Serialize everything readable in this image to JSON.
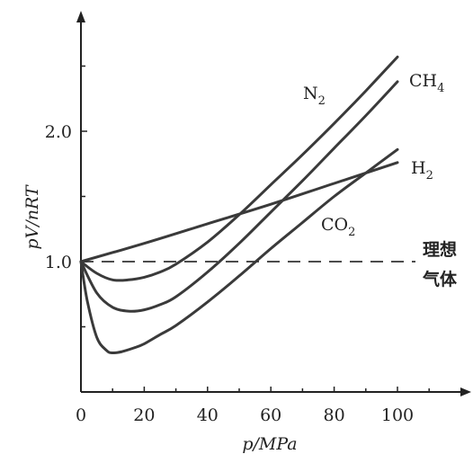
{
  "chart_data": {
    "type": "line",
    "xlabel": "p/MPa",
    "ylabel": "pV/nRT",
    "xlim": [
      0,
      125
    ],
    "ylim": [
      0,
      2.9
    ],
    "x_ticks": [
      0,
      20,
      40,
      60,
      80,
      100
    ],
    "y_ticks": [
      1.0,
      2.0
    ],
    "x_tick_labels": [
      "0",
      "20",
      "40",
      "60",
      "80",
      "100"
    ],
    "y_tick_labels": [
      "1.0",
      "2.0"
    ],
    "grid": false,
    "series": [
      {
        "name": "N2",
        "label_main": "N",
        "label_sub": "2",
        "color": "#3a3a3a",
        "x": [
          0,
          5,
          10,
          15,
          20,
          25,
          30,
          40,
          50,
          60,
          70,
          80,
          90,
          100
        ],
        "y": [
          1.0,
          0.91,
          0.86,
          0.86,
          0.88,
          0.92,
          0.98,
          1.15,
          1.36,
          1.59,
          1.82,
          2.06,
          2.31,
          2.57
        ]
      },
      {
        "name": "CH4",
        "label_main": "CH",
        "label_sub": "4",
        "color": "#3a3a3a",
        "x": [
          0,
          5,
          10,
          15,
          20,
          25,
          30,
          40,
          50,
          60,
          70,
          80,
          90,
          100
        ],
        "y": [
          1.0,
          0.76,
          0.65,
          0.62,
          0.63,
          0.67,
          0.73,
          0.92,
          1.14,
          1.38,
          1.62,
          1.87,
          2.12,
          2.38
        ]
      },
      {
        "name": "H2",
        "label_main": "H",
        "label_sub": "2",
        "color": "#3a3a3a",
        "x": [
          0,
          20,
          40,
          60,
          80,
          100
        ],
        "y": [
          1.0,
          1.14,
          1.29,
          1.44,
          1.6,
          1.76
        ]
      },
      {
        "name": "CO2",
        "label_main": "CO",
        "label_sub": "2",
        "color": "#3a3a3a",
        "x": [
          0,
          2,
          5,
          8,
          10,
          13,
          17,
          20,
          25,
          30,
          40,
          50,
          60,
          70,
          80,
          90,
          100
        ],
        "y": [
          1.0,
          0.7,
          0.42,
          0.32,
          0.3,
          0.31,
          0.34,
          0.37,
          0.44,
          0.51,
          0.69,
          0.89,
          1.1,
          1.3,
          1.5,
          1.68,
          1.86
        ]
      }
    ],
    "reference_line": {
      "y": 1.0,
      "style": "dashed",
      "label_line1": "理想",
      "label_line2": "气体"
    }
  }
}
